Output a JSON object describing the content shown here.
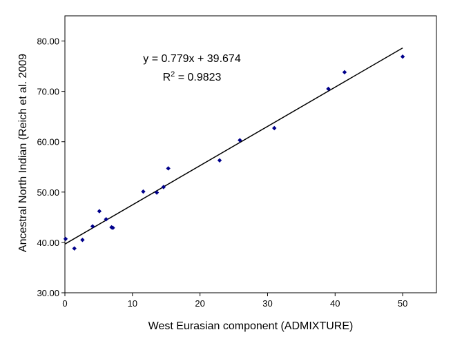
{
  "chart_data": {
    "type": "scatter",
    "xlabel": "West Eurasian component (ADMIXTURE)",
    "ylabel": "Ancestral North Indian (Reich et al. 2009",
    "xlim": [
      0,
      55
    ],
    "ylim": [
      30,
      85
    ],
    "x_ticks": [
      0,
      10,
      20,
      30,
      40,
      50
    ],
    "y_ticks": [
      "30.00",
      "40.00",
      "50.00",
      "60.00",
      "70.00",
      "80.00"
    ],
    "grid": false,
    "marker_color": "#00008B",
    "series": [
      {
        "points": [
          {
            "x": 0.1,
            "y": 40.7
          },
          {
            "x": 1.4,
            "y": 38.8
          },
          {
            "x": 2.6,
            "y": 40.5
          },
          {
            "x": 4.1,
            "y": 43.2
          },
          {
            "x": 5.1,
            "y": 46.2
          },
          {
            "x": 6.1,
            "y": 44.6
          },
          {
            "x": 6.9,
            "y": 43.0
          },
          {
            "x": 7.1,
            "y": 42.9
          },
          {
            "x": 11.6,
            "y": 50.1
          },
          {
            "x": 13.6,
            "y": 49.9
          },
          {
            "x": 14.6,
            "y": 51.0
          },
          {
            "x": 15.3,
            "y": 54.7
          },
          {
            "x": 22.9,
            "y": 56.3
          },
          {
            "x": 25.9,
            "y": 60.3
          },
          {
            "x": 31.0,
            "y": 62.7
          },
          {
            "x": 39.0,
            "y": 70.5
          },
          {
            "x": 41.4,
            "y": 73.8
          },
          {
            "x": 50.0,
            "y": 76.9
          }
        ]
      }
    ],
    "trendline": {
      "slope": 0.779,
      "intercept": 39.674,
      "x_range": [
        0,
        50
      ],
      "equation": "y = 0.779x + 39.674",
      "r_squared_prefix": "R",
      "r_squared_sup": "2",
      "r_squared_value": " = 0.9823"
    }
  }
}
